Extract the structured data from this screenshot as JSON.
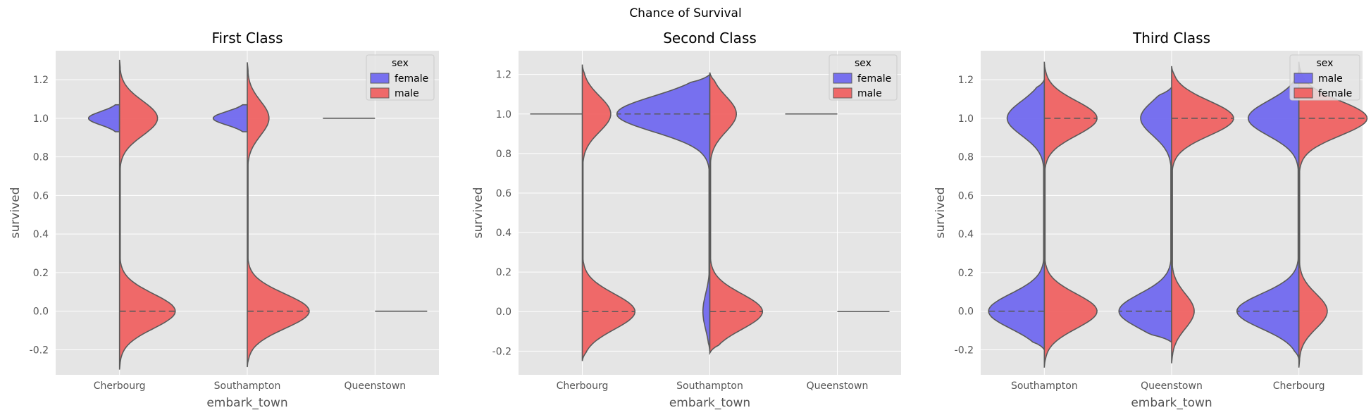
{
  "figure": {
    "suptitle": "Chance of Survival"
  },
  "colors": {
    "male": "#ef5b5b",
    "female": "#6a63ef",
    "outline": "#5a5a5a",
    "panel_bg": "#e5e5e5",
    "grid": "#ffffff"
  },
  "chart_data": [
    {
      "type": "violin",
      "title": "First Class",
      "xlabel": "embark_town",
      "ylabel": "survived",
      "ylim": [
        -0.33,
        1.35
      ],
      "yticks": [
        "-0.2",
        "0.0",
        "0.2",
        "0.4",
        "0.6",
        "0.8",
        "1.0",
        "1.2"
      ],
      "categories": [
        "Cherbourg",
        "Southampton",
        "Queenstown"
      ],
      "legend": {
        "title": "sex",
        "entries": [
          {
            "label": "female",
            "group": "female"
          },
          {
            "label": "male",
            "group": "male"
          }
        ],
        "placement": "top-right"
      },
      "violins": [
        {
          "female": {
            "range": [
              1.0,
              1.0
            ],
            "p1": 1.0,
            "w1": 0.5,
            "wt": 0.2,
            "degenerate": false
          },
          "male": {
            "p0": 0.55,
            "p1": 0.45,
            "w0": 0.18,
            "w1": 0.15,
            "range": [
              -0.3,
              1.3
            ]
          }
        },
        {
          "female": {
            "range": [
              1.0,
              1.0
            ],
            "p1": 1.0,
            "w1": 0.55,
            "wt": 0.2
          },
          "male": {
            "p0": 0.65,
            "p1": 0.35,
            "w0": 0.2,
            "w1": 0.13,
            "range": [
              -0.29,
              1.29
            ]
          }
        },
        {
          "female": {
            "degenerate": true,
            "value": 1.0
          },
          "male": {
            "degenerate": true,
            "value": 0.0
          }
        }
      ]
    },
    {
      "type": "violin",
      "title": "Second Class",
      "xlabel": "embark_town",
      "ylabel": "survived",
      "ylim": [
        -0.32,
        1.32
      ],
      "yticks": [
        "-0.2",
        "0.0",
        "0.2",
        "0.4",
        "0.6",
        "0.8",
        "1.0",
        "1.2"
      ],
      "categories": [
        "Cherbourg",
        "Southampton",
        "Queenstown"
      ],
      "legend": {
        "title": "sex",
        "entries": [
          {
            "label": "female",
            "group": "female"
          },
          {
            "label": "male",
            "group": "male"
          }
        ],
        "placement": "top-right"
      },
      "violins": [
        {
          "female": {
            "degenerate": true,
            "value": 1.0
          },
          "male": {
            "p0": 0.62,
            "p1": 0.38,
            "w0": 0.17,
            "w1": 0.15,
            "range": [
              -0.25,
              1.25
            ]
          }
        },
        {
          "female": {
            "p0": 0.1,
            "p1": 0.9,
            "w0": 0.2,
            "w1": 0.3,
            "range": [
              -0.2,
              1.2
            ]
          },
          "male": {
            "p0": 0.7,
            "p1": 0.3,
            "w0": 0.17,
            "w1": 0.2,
            "range": [
              -0.21,
              1.21
            ]
          }
        },
        {
          "female": {
            "degenerate": true,
            "value": 1.0
          },
          "male": {
            "degenerate": true,
            "value": 0.0
          }
        }
      ]
    },
    {
      "type": "violin",
      "title": "Third Class",
      "xlabel": "embark_town",
      "ylabel": "survived",
      "ylim": [
        -0.33,
        1.35
      ],
      "yticks": [
        "-0.2",
        "0.0",
        "0.2",
        "0.4",
        "0.6",
        "0.8",
        "1.0",
        "1.2"
      ],
      "categories": [
        "Southampton",
        "Queenstown",
        "Cherbourg"
      ],
      "legend": {
        "title": "sex",
        "entries": [
          {
            "label": "male",
            "group": "female"
          },
          {
            "label": "female",
            "group": "male"
          }
        ],
        "placement": "top-right"
      },
      "violins": [
        {
          "female": {
            "p0": 0.6,
            "p1": 0.4,
            "w0": 0.18,
            "w1": 0.18,
            "range": [
              -0.2,
              1.2
            ]
          },
          "male": {
            "p0": 0.5,
            "p1": 0.5,
            "w0": 0.17,
            "w1": 0.17,
            "range": [
              -0.29,
              1.29
            ]
          }
        },
        {
          "female": {
            "p0": 0.6,
            "p1": 0.4,
            "w0": 0.17,
            "w1": 0.15,
            "range": [
              -0.16,
              1.16
            ]
          },
          "male": {
            "p0": 0.3,
            "p1": 0.7,
            "w0": 0.17,
            "w1": 0.2,
            "range": [
              -0.27,
              1.27
            ]
          }
        },
        {
          "female": {
            "p0": 0.55,
            "p1": 0.45,
            "w0": 0.2,
            "w1": 0.2,
            "range": [
              -0.25,
              1.25
            ]
          },
          "male": {
            "p0": 0.35,
            "p1": 0.65,
            "w0": 0.17,
            "w1": 0.22,
            "range": [
              -0.29,
              1.29
            ]
          }
        }
      ]
    }
  ]
}
